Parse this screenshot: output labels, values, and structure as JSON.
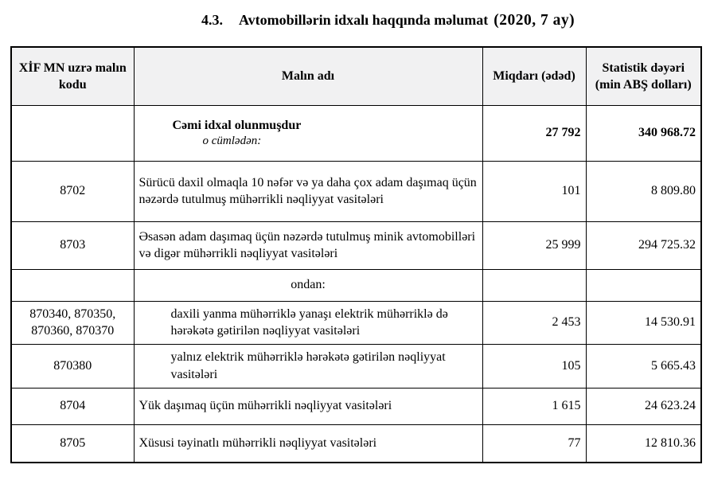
{
  "page": {
    "title_number": "4.3.",
    "title_text": "Avtomobillərin idxalı haqqında məlumat",
    "title_suffix": "(2020, 7 ay)"
  },
  "table": {
    "headers": {
      "code": "XİF MN uzrə malın kodu",
      "name": "Malın adı",
      "qty": "Miqdarı (ədəd)",
      "value": "Statistik dəyəri (min ABŞ dolları)"
    },
    "summary": {
      "name": "Cəmi idxal olunmuşdur",
      "sub": "o cümlədən:",
      "qty": "27 792",
      "value": "340 968.72"
    },
    "rows": [
      {
        "code": "8702",
        "name": "Sürücü daxil olmaqla 10 nəfər və ya daha çox adam daşımaq üçün nəzərdə tutulmuş mühərrikli nəqliyyat vasitələri",
        "qty": "101",
        "value": "8 809.80"
      },
      {
        "code": "8703",
        "name": "Əsasən adam daşımaq üçün nəzərdə tutulmuş minik avtomobilləri və digər mühərrikli nəqliyyat vasitələri",
        "qty": "25 999",
        "value": "294 725.32"
      },
      {
        "code": "",
        "name": "ondan:",
        "qty": "",
        "value": ""
      },
      {
        "code": "870340, 870350, 870360, 870370",
        "name": "daxili yanma mühərriklə yanaşı elektrik mühərriklə də hərəkətə gətirilən nəqliyyat vasitələri",
        "qty": "2 453",
        "value": "14 530.91"
      },
      {
        "code": "870380",
        "name": "yalnız elektrik mühərriklə hərəkətə gətirilən nəqliyyat vasitələri",
        "qty": "105",
        "value": "5 665.43"
      },
      {
        "code": "8704",
        "name": "Yük daşımaq üçün mühərrikli nəqliyyat vasitələri",
        "qty": "1 615",
        "value": "24 623.24"
      },
      {
        "code": "8705",
        "name": "Xüsusi təyinatlı mühərrikli nəqliyyat vasitələri",
        "qty": "77",
        "value": "12 810.36"
      }
    ]
  }
}
